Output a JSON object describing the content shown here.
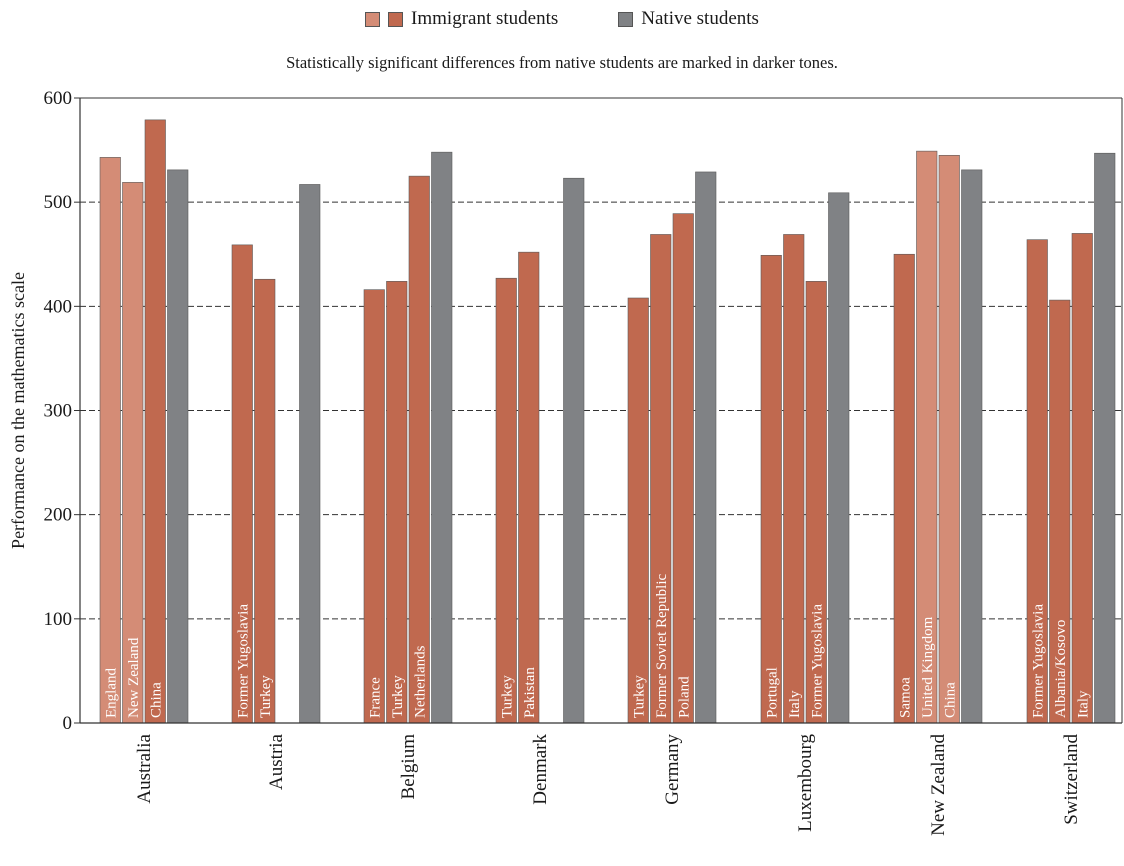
{
  "legend": {
    "immigrant_label": "Immigrant students",
    "native_label": "Native students"
  },
  "subtitle": "Statistically significant differences from native students are marked in darker tones.",
  "colors": {
    "immigrant_dark": "#c0694f",
    "immigrant_light": "#d48c76",
    "native": "#808285",
    "axis": "#333333",
    "grid": "#333333",
    "bar_text": "#ffffff",
    "label_text": "#1a1a1a"
  },
  "chart_data": {
    "type": "bar",
    "ylabel": "Performance on the mathematics scale",
    "xlabel": "",
    "ylim": [
      0,
      600
    ],
    "yticks": [
      "0",
      "100",
      "200",
      "300",
      "400",
      "500",
      "600"
    ],
    "grid": "dashed horizontal",
    "legend_position": "top-center",
    "groups": [
      {
        "country": "Australia",
        "immigrant_bars": [
          {
            "label": "England",
            "value": 543,
            "significant": false
          },
          {
            "label": "New Zealand",
            "value": 519,
            "significant": false
          },
          {
            "label": "China",
            "value": 579,
            "significant": true
          }
        ],
        "native": 531
      },
      {
        "country": "Austria",
        "immigrant_bars": [
          {
            "label": "Former Yugoslavia",
            "value": 459,
            "significant": true
          },
          {
            "label": "Turkey",
            "value": 426,
            "significant": true
          }
        ],
        "native": 517
      },
      {
        "country": "Belgium",
        "immigrant_bars": [
          {
            "label": "France",
            "value": 416,
            "significant": true
          },
          {
            "label": "Turkey",
            "value": 424,
            "significant": true
          },
          {
            "label": "Netherlands",
            "value": 525,
            "significant": true
          }
        ],
        "native": 548
      },
      {
        "country": "Denmark",
        "immigrant_bars": [
          {
            "label": "Turkey",
            "value": 427,
            "significant": true
          },
          {
            "label": "Pakistan",
            "value": 452,
            "significant": true
          }
        ],
        "native": 523
      },
      {
        "country": "Germany",
        "immigrant_bars": [
          {
            "label": "Turkey",
            "value": 408,
            "significant": true
          },
          {
            "label": "Former Soviet Republic",
            "value": 469,
            "significant": true
          },
          {
            "label": "Poland",
            "value": 489,
            "significant": true
          }
        ],
        "native": 529
      },
      {
        "country": "Luxembourg",
        "immigrant_bars": [
          {
            "label": "Portugal",
            "value": 449,
            "significant": true
          },
          {
            "label": "Italy",
            "value": 469,
            "significant": true
          },
          {
            "label": "Former Yugoslavia",
            "value": 424,
            "significant": true
          }
        ],
        "native": 509
      },
      {
        "country": "New Zealand",
        "immigrant_bars": [
          {
            "label": "Samoa",
            "value": 450,
            "significant": true
          },
          {
            "label": "United Kingdom",
            "value": 549,
            "significant": false
          },
          {
            "label": "China",
            "value": 545,
            "significant": false
          }
        ],
        "native": 531
      },
      {
        "country": "Switzerland",
        "immigrant_bars": [
          {
            "label": "Former Yugoslavia",
            "value": 464,
            "significant": true
          },
          {
            "label": "Albania/Kosovo",
            "value": 406,
            "significant": true
          },
          {
            "label": "Italy",
            "value": 470,
            "significant": true
          }
        ],
        "native": 547
      }
    ]
  }
}
